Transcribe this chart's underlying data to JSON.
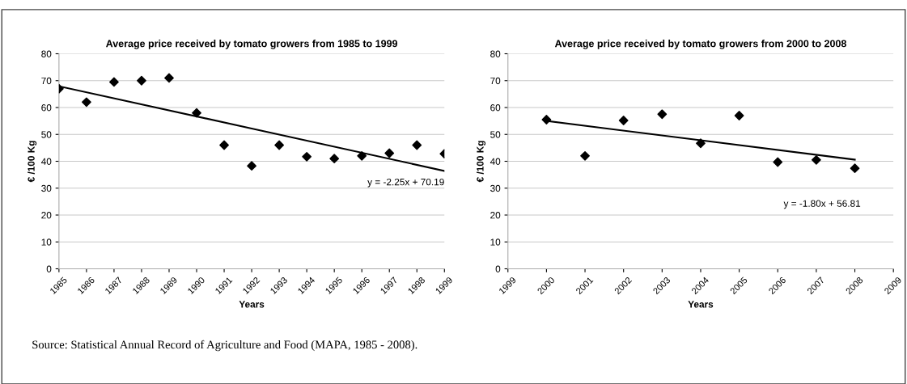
{
  "chart_data": [
    {
      "type": "scatter",
      "title": "Average price received by tomato growers from 1985 to 1999",
      "xlabel": "Years",
      "ylabel": "€ /100 Kg",
      "grid": "y",
      "legend": false,
      "series": [
        {
          "color": "#000000",
          "marker": "diamond",
          "x": [
            1985,
            1986,
            1987,
            1988,
            1989,
            1990,
            1991,
            1992,
            1993,
            1994,
            1995,
            1996,
            1997,
            1998,
            1999
          ],
          "values": [
            67,
            62,
            69.5,
            70,
            71,
            58,
            46,
            38.3,
            46,
            41.7,
            41,
            42,
            43,
            46,
            42.8
          ]
        },
        {
          "type": "line",
          "color": "#000000",
          "x": [
            1985,
            1992,
            1999
          ],
          "values": [
            67.9,
            52.2,
            36.4
          ]
        }
      ],
      "xlim": [
        1985,
        1999
      ],
      "xticks": [
        1985,
        1986,
        1987,
        1988,
        1989,
        1990,
        1991,
        1992,
        1993,
        1994,
        1995,
        1996,
        1997,
        1998,
        1999
      ],
      "ylim": [
        0,
        80
      ],
      "yticks": [
        0,
        10,
        20,
        30,
        40,
        50,
        60,
        70,
        80
      ],
      "annotations": [
        "y = -2.25x + 70.19",
        "Source: Statistical Annual Record of Agriculture and Food (MAPA, 1985 - 2008)."
      ]
    },
    {
      "type": "scatter",
      "title": "Average price received by tomato growers from 2000 to 2008",
      "xlabel": "Years",
      "ylabel": "€ /100 Kg",
      "grid": "y",
      "legend": false,
      "series": [
        {
          "color": "#000000",
          "marker": "diamond",
          "x": [
            2000,
            2001,
            2002,
            2003,
            2004,
            2005,
            2006,
            2007,
            2008
          ],
          "values": [
            55.5,
            42,
            55.2,
            57.5,
            46.7,
            57,
            39.7,
            40.5,
            37.4
          ]
        },
        {
          "type": "line",
          "color": "#000000",
          "x": [
            2000,
            2004,
            2008
          ],
          "values": [
            55.0,
            47.8,
            40.6
          ]
        }
      ],
      "xlim": [
        1999,
        2009
      ],
      "xticks": [
        1999,
        2000,
        2001,
        2002,
        2003,
        2004,
        2005,
        2006,
        2007,
        2008,
        2009
      ],
      "ylim": [
        0,
        80
      ],
      "yticks": [
        0,
        10,
        20,
        30,
        40,
        50,
        60,
        70,
        80
      ],
      "annotations": [
        "y = -1.80x + 56.81"
      ]
    }
  ]
}
